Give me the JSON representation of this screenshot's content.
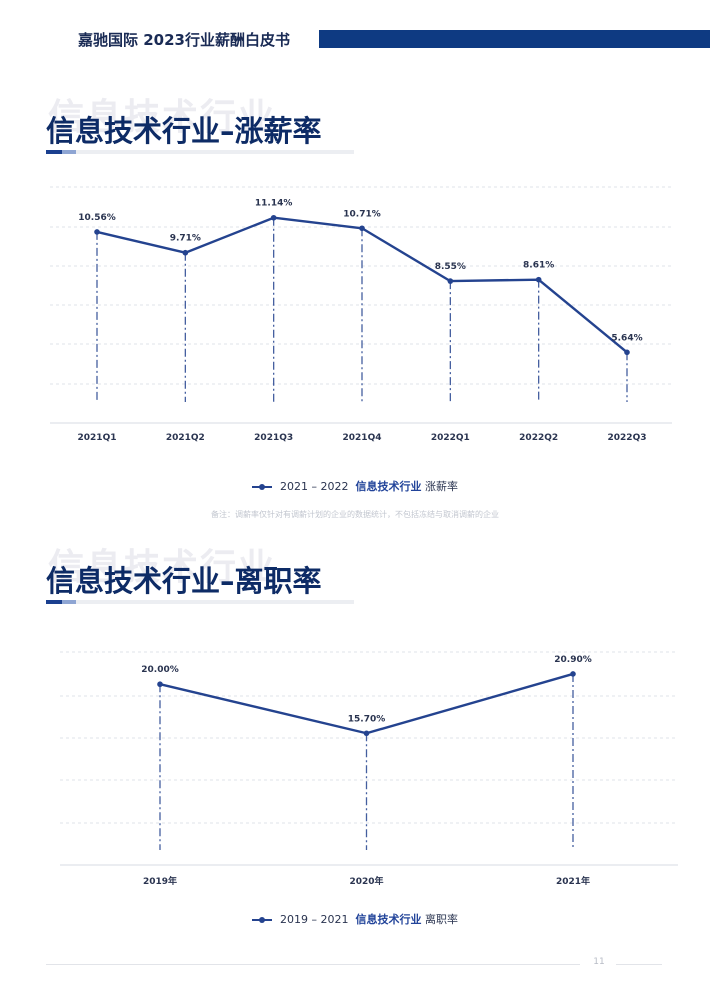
{
  "header": {
    "brand": "嘉驰国际  2023行业薪酬白皮书"
  },
  "sections": [
    {
      "watermark": "信息技术行业",
      "title": "信息技术行业–涨薪率"
    },
    {
      "watermark": "信息技术行业",
      "title": "信息技术行业–离职率"
    }
  ],
  "legends": [
    {
      "years": "2021 – 2022",
      "industry": "信息技术行业",
      "metric": "涨薪率"
    },
    {
      "years": "2019 – 2021",
      "industry": "信息技术行业",
      "metric": "离职率"
    }
  ],
  "note": "备注：调薪率仅针对有调薪计划的企业的数据统计，不包括冻结与取消调薪的企业",
  "footer": {
    "page": "11"
  },
  "colors": {
    "primary": "#0e3a82",
    "line": "#24438f",
    "grid": "#dfe3ea"
  },
  "chart_data": [
    {
      "type": "line",
      "categories": [
        "2021Q1",
        "2021Q2",
        "2021Q3",
        "2021Q4",
        "2022Q1",
        "2022Q2",
        "2022Q3"
      ],
      "values": [
        10.56,
        9.71,
        11.14,
        10.71,
        8.55,
        8.61,
        5.64
      ],
      "labels": [
        "10.56%",
        "9.71%",
        "11.14%",
        "10.71%",
        "8.55%",
        "8.61%",
        "5.64%"
      ],
      "ylim": [
        0,
        12
      ]
    },
    {
      "type": "line",
      "categories": [
        "2019年",
        "2020年",
        "2021年"
      ],
      "values": [
        20.0,
        15.7,
        20.9
      ],
      "labels": [
        "20.00%",
        "15.70%",
        "20.90%"
      ],
      "ylim": [
        0,
        23
      ]
    }
  ]
}
